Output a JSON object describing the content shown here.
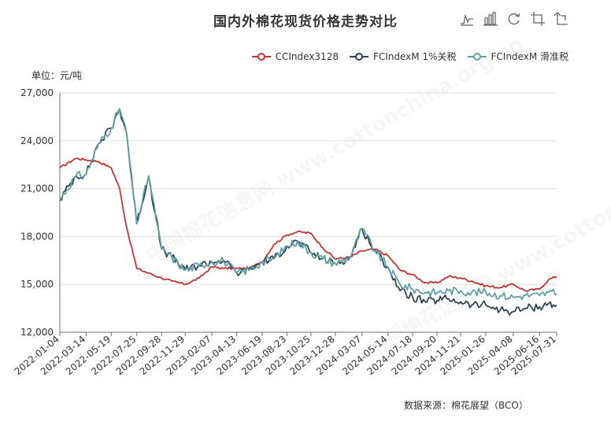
{
  "title": "国内外棉花现货价格走势对比",
  "unit": "单位：元/吨",
  "source": "数据来源：棉花展望（BCO）",
  "watermark": "中国棉花信息网 www.cottonchina.org.cn",
  "toolbox": [
    {
      "name": "line-chart-icon",
      "label": "切换为折线图"
    },
    {
      "name": "bar-chart-icon",
      "label": "切换为柱状图"
    },
    {
      "name": "refresh-icon",
      "label": "还原"
    },
    {
      "name": "crop-icon",
      "label": "区域缩放"
    },
    {
      "name": "undo-icon",
      "label": "区域缩放还原"
    }
  ],
  "chart_data": {
    "type": "line",
    "title": "国内外棉花现货价格走势对比",
    "ylabel": "单位：元/吨",
    "ylim": [
      12000,
      27000
    ],
    "yticks": [
      "12,000",
      "15,000",
      "18,000",
      "21,000",
      "24,000",
      "27,000"
    ],
    "grid": true,
    "legend_position": "top-right",
    "xticks": [
      "2022-01-04",
      "2022-03-14",
      "2022-05-19",
      "2022-07-25",
      "2022-09-28",
      "2022-11-29",
      "2023-02-07",
      "2023-04-13",
      "2023-06-19",
      "2023-08-23",
      "2023-10-25",
      "2023-12-28",
      "2024-03-07",
      "2024-05-14",
      "2024-07-18",
      "2024-09-20",
      "2024-11-21",
      "2025-01-26",
      "2025-04-08",
      "2025-06-16",
      "2025-07-31"
    ],
    "x_anchor_dates": [
      "2022-01-04",
      "2022-02-15",
      "2022-03-14",
      "2022-04-15",
      "2022-05-19",
      "2022-06-10",
      "2022-06-28",
      "2022-07-25",
      "2022-08-25",
      "2022-09-28",
      "2022-10-25",
      "2022-11-29",
      "2023-01-05",
      "2023-02-07",
      "2023-03-10",
      "2023-04-13",
      "2023-05-15",
      "2023-06-19",
      "2023-07-20",
      "2023-08-23",
      "2023-09-20",
      "2023-10-25",
      "2023-11-25",
      "2023-12-28",
      "2024-02-05",
      "2024-03-07",
      "2024-04-10",
      "2024-05-14",
      "2024-06-15",
      "2024-07-18",
      "2024-08-20",
      "2024-09-20",
      "2024-10-20",
      "2024-11-21",
      "2024-12-20",
      "2025-01-26",
      "2025-03-05",
      "2025-04-08",
      "2025-05-10",
      "2025-06-16",
      "2025-07-10",
      "2025-07-31"
    ],
    "series": [
      {
        "name": "CCIndex3128",
        "color": "#c23531",
        "values": [
          22300,
          22900,
          22800,
          22700,
          22300,
          21000,
          18600,
          16000,
          15700,
          15400,
          15200,
          15000,
          15400,
          16100,
          16000,
          16000,
          16000,
          16400,
          17500,
          18100,
          18300,
          18200,
          17300,
          16600,
          16700,
          17100,
          17200,
          16800,
          15900,
          15600,
          15100,
          15100,
          15500,
          15400,
          15200,
          14900,
          14800,
          15000,
          14600,
          14700,
          15300,
          15500
        ]
      },
      {
        "name": "FCIndexM 1%关税",
        "color": "#2f4554",
        "values": [
          20300,
          21800,
          21900,
          23800,
          24800,
          26000,
          24500,
          18800,
          21800,
          17200,
          16700,
          15900,
          16200,
          16400,
          16500,
          15700,
          15900,
          16400,
          16600,
          17400,
          17700,
          17000,
          16600,
          16300,
          16700,
          18500,
          17100,
          16100,
          14600,
          14200,
          13900,
          14000,
          14100,
          13900,
          13700,
          13700,
          13400,
          13300,
          13500,
          13600,
          13800,
          13700
        ]
      },
      {
        "name": "FCIndexM 滑准税",
        "color": "#61a0a8",
        "values": [
          20300,
          21800,
          21900,
          23800,
          24800,
          26000,
          24500,
          18800,
          21800,
          17200,
          16700,
          15900,
          16200,
          16400,
          16500,
          15700,
          15900,
          16400,
          16600,
          17400,
          17700,
          17000,
          16600,
          16300,
          16700,
          18500,
          17100,
          16100,
          15000,
          14700,
          14500,
          14500,
          14600,
          14600,
          14500,
          14500,
          14300,
          14200,
          14300,
          14300,
          14500,
          14400
        ]
      }
    ]
  }
}
